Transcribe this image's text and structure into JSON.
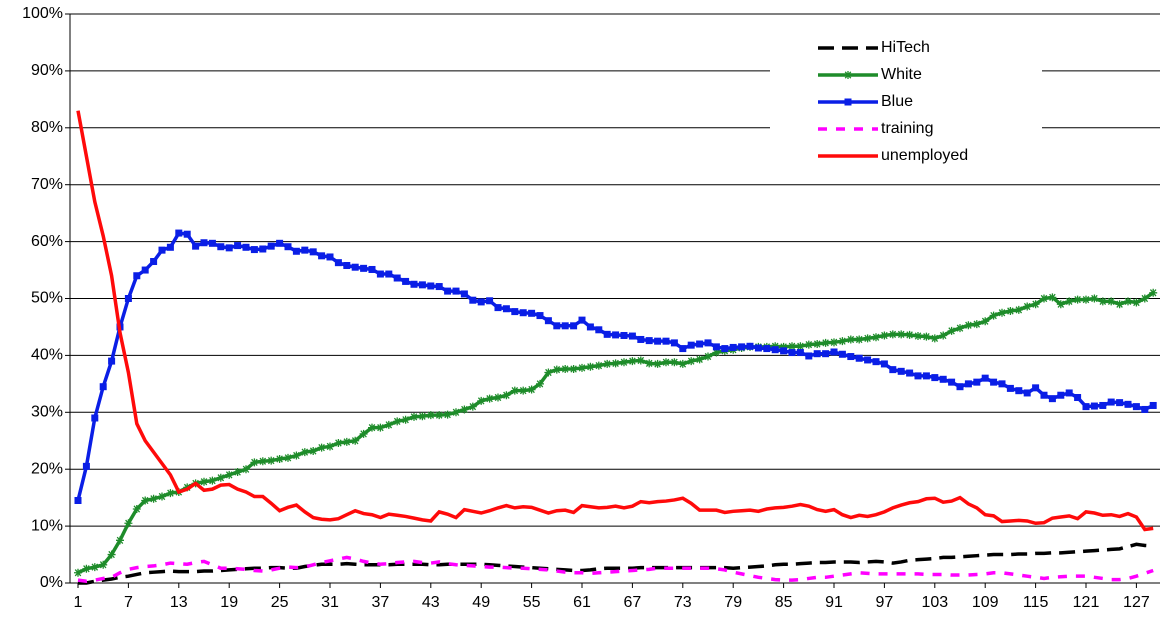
{
  "chart_data": {
    "type": "line",
    "categories": [
      "1",
      null,
      null,
      null,
      null,
      null,
      "7",
      null,
      null,
      null,
      null,
      null,
      "13",
      null,
      null,
      null,
      null,
      null,
      "19",
      null,
      null,
      null,
      null,
      null,
      "25",
      null,
      null,
      null,
      null,
      null,
      "31",
      null,
      null,
      null,
      null,
      null,
      "37",
      null,
      null,
      null,
      null,
      null,
      "43",
      null,
      null,
      null,
      null,
      null,
      "49",
      null,
      null,
      null,
      null,
      null,
      "55",
      null,
      null,
      null,
      null,
      null,
      "61",
      null,
      null,
      null,
      null,
      null,
      "67",
      null,
      null,
      null,
      null,
      null,
      "73",
      null,
      null,
      null,
      null,
      null,
      "79",
      null,
      null,
      null,
      null,
      null,
      "85",
      null,
      null,
      null,
      null,
      null,
      "91",
      null,
      null,
      null,
      null,
      null,
      "97",
      null,
      null,
      null,
      null,
      null,
      "103",
      null,
      null,
      null,
      null,
      null,
      "109",
      null,
      null,
      null,
      null,
      null,
      "115",
      null,
      null,
      null,
      null,
      null,
      "121",
      null,
      null,
      null,
      null,
      null,
      "127",
      null,
      null
    ],
    "series": [
      {
        "name": "HiTech",
        "color": "#000000",
        "dash": "long",
        "marker": "none",
        "values": [
          0,
          0,
          0.3,
          0.5,
          0.7,
          1,
          1.2,
          1.5,
          1.8,
          1.9,
          2,
          2.1,
          2,
          2,
          2,
          2.1,
          2.1,
          2.2,
          2.3,
          2.4,
          2.5,
          2.6,
          2.6,
          2.7,
          2.7,
          2.6,
          2.6,
          2.9,
          3.1,
          3.3,
          3.3,
          3.3,
          3.4,
          3.3,
          3.2,
          3.2,
          3.2,
          3.2,
          3.3,
          3.3,
          3.3,
          3.3,
          3.2,
          3.2,
          3.3,
          3.3,
          3.3,
          3.3,
          3.3,
          3.2,
          3.1,
          3,
          2.9,
          2.8,
          2.7,
          2.6,
          2.5,
          2.4,
          2.3,
          2.2,
          2.2,
          2.3,
          2.5,
          2.6,
          2.6,
          2.6,
          2.6,
          2.7,
          2.7,
          2.7,
          2.7,
          2.7,
          2.7,
          2.7,
          2.7,
          2.7,
          2.7,
          2.7,
          2.6,
          2.7,
          2.8,
          2.9,
          3,
          3.2,
          3.3,
          3.3,
          3.4,
          3.5,
          3.6,
          3.6,
          3.7,
          3.7,
          3.7,
          3.6,
          3.7,
          3.8,
          3.7,
          3.5,
          3.7,
          4,
          4.1,
          4.2,
          4.3,
          4.5,
          4.5,
          4.6,
          4.7,
          4.8,
          4.9,
          5,
          5,
          5,
          5.1,
          5.1,
          5.2,
          5.2,
          5.3,
          5.3,
          5.4,
          5.5,
          5.6,
          5.7,
          5.8,
          5.9,
          6,
          6.4,
          6.8,
          6.6,
          6.5
        ]
      },
      {
        "name": "White",
        "color": "#1e8c2a",
        "dash": "solid",
        "marker": "asterisk",
        "values": [
          1.8,
          2.5,
          2.8,
          3.2,
          5,
          7.5,
          10.5,
          13,
          14.5,
          14.8,
          15.2,
          15.8,
          16,
          16.8,
          17.5,
          17.8,
          18,
          18.5,
          19,
          19.5,
          20,
          21.2,
          21.4,
          21.5,
          21.8,
          22,
          22.4,
          23,
          23.2,
          23.8,
          24,
          24.6,
          24.8,
          25,
          26.2,
          27.3,
          27.3,
          27.8,
          28.4,
          28.7,
          29.2,
          29.3,
          29.5,
          29.5,
          29.6,
          30,
          30.5,
          31,
          32,
          32.4,
          32.6,
          33,
          33.8,
          33.8,
          34,
          35,
          37,
          37.5,
          37.6,
          37.6,
          37.8,
          38,
          38.2,
          38.5,
          38.6,
          38.8,
          39,
          39.1,
          38.6,
          38.5,
          38.8,
          38.8,
          38.5,
          39,
          39.3,
          39.8,
          40.5,
          40.8,
          41,
          41.3,
          41.5,
          41.5,
          41.5,
          41.6,
          41.5,
          41.6,
          41.6,
          41.9,
          42,
          42.2,
          42.3,
          42.5,
          42.8,
          42.8,
          43,
          43.2,
          43.5,
          43.7,
          43.7,
          43.6,
          43.4,
          43.3,
          43,
          43.5,
          44.3,
          44.8,
          45.3,
          45.5,
          46,
          47,
          47.5,
          47.8,
          48,
          48.6,
          49,
          50,
          50.2,
          49,
          49.5,
          49.8,
          49.8,
          50,
          49.5,
          49.5,
          49,
          49.5,
          49.3,
          50,
          51
        ]
      },
      {
        "name": "Blue",
        "color": "#0a1ee6",
        "dash": "solid",
        "marker": "square",
        "values": [
          14.5,
          20.5,
          29,
          34.5,
          39,
          45,
          50,
          54,
          55,
          56.5,
          58.5,
          59,
          61.5,
          61.3,
          59.2,
          59.8,
          59.7,
          59.1,
          58.9,
          59.3,
          59,
          58.6,
          58.7,
          59.2,
          59.7,
          59.1,
          58.3,
          58.5,
          58.2,
          57.5,
          57.3,
          56.3,
          55.8,
          55.5,
          55.3,
          55.1,
          54.3,
          54.3,
          53.6,
          53,
          52.5,
          52.4,
          52.2,
          52.1,
          51.3,
          51.3,
          50.8,
          49.7,
          49.4,
          49.6,
          48.4,
          48.2,
          47.7,
          47.5,
          47.4,
          47,
          46.1,
          45.2,
          45.2,
          45.2,
          46.2,
          45,
          44.5,
          43.7,
          43.6,
          43.5,
          43.4,
          42.8,
          42.6,
          42.5,
          42.5,
          42.2,
          41.2,
          41.8,
          42,
          42.2,
          41.5,
          41.2,
          41.4,
          41.5,
          41.6,
          41.3,
          41.2,
          41,
          40.8,
          40.5,
          40.5,
          39.9,
          40.3,
          40.3,
          40.6,
          40.2,
          39.8,
          39.5,
          39.2,
          38.9,
          38.5,
          37.5,
          37.2,
          36.9,
          36.4,
          36.4,
          36.1,
          35.8,
          35.3,
          34.5,
          35,
          35.3,
          36,
          35.3,
          35,
          34.2,
          33.8,
          33.4,
          34.3,
          33,
          32.4,
          33,
          33.4,
          32.6,
          31,
          31.1,
          31.2,
          31.8,
          31.7,
          31.4,
          31,
          30.5,
          31.2
        ]
      },
      {
        "name": "training",
        "color": "#ff00ff",
        "dash": "short",
        "marker": "none",
        "values": [
          0.5,
          0.3,
          0.5,
          0.8,
          1,
          1.8,
          2.4,
          2.7,
          2.9,
          3,
          3.2,
          3.5,
          3.4,
          3.3,
          3.6,
          3.8,
          3.2,
          2.6,
          2.6,
          2.5,
          2.4,
          2.2,
          2.1,
          2.3,
          2.6,
          2.8,
          2.7,
          2.8,
          3.2,
          3.6,
          3.9,
          4.2,
          4.5,
          4.2,
          3.8,
          3.5,
          3.3,
          3.4,
          3.6,
          3.7,
          3.8,
          3.6,
          3.5,
          3.7,
          3.4,
          3.2,
          3.1,
          3,
          2.9,
          2.8,
          2.8,
          2.7,
          2.6,
          2.6,
          2.5,
          2.4,
          2.3,
          2.1,
          1.9,
          1.8,
          1.8,
          1.7,
          1.8,
          1.9,
          2,
          2.1,
          2.2,
          2.3,
          2.4,
          2.6,
          2.6,
          2.6,
          2.6,
          2.6,
          2.6,
          2.6,
          2.5,
          2.3,
          1.9,
          1.6,
          1.3,
          1,
          0.8,
          0.6,
          0.5,
          0.5,
          0.6,
          0.8,
          1,
          1,
          1.2,
          1.4,
          1.6,
          1.8,
          1.7,
          1.6,
          1.6,
          1.6,
          1.6,
          1.6,
          1.6,
          1.5,
          1.5,
          1.5,
          1.4,
          1.4,
          1.4,
          1.5,
          1.6,
          1.8,
          1.8,
          1.6,
          1.4,
          1.2,
          1,
          0.8,
          1,
          1.1,
          1.2,
          1.2,
          1.2,
          1,
          0.8,
          0.6,
          0.6,
          0.8,
          1.2,
          1.7,
          2.2
        ]
      },
      {
        "name": "unemployed",
        "color": "#ff0a0a",
        "dash": "solid",
        "marker": "none",
        "values": [
          83,
          75,
          67,
          61,
          54,
          44,
          37,
          28,
          25,
          23,
          21,
          19,
          16,
          16.5,
          17.5,
          16.3,
          16.5,
          17.2,
          17.3,
          16.5,
          16,
          15.2,
          15.2,
          14,
          12.7,
          13.3,
          13.7,
          12.5,
          11.5,
          11.2,
          11.1,
          11.3,
          12,
          12.7,
          12.2,
          12,
          11.5,
          12.1,
          11.9,
          11.7,
          11.4,
          11.1,
          10.9,
          12.5,
          12.1,
          11.5,
          12.9,
          12.6,
          12.3,
          12.7,
          13.2,
          13.6,
          13.2,
          13.4,
          13.3,
          12.8,
          12.3,
          12.7,
          12.8,
          12.4,
          13.6,
          13.4,
          13.2,
          13.3,
          13.5,
          13.2,
          13.5,
          14.3,
          14.1,
          14.3,
          14.4,
          14.6,
          14.9,
          14,
          12.8,
          12.8,
          12.8,
          12.4,
          12.6,
          12.7,
          12.8,
          12.6,
          13,
          13.2,
          13.3,
          13.5,
          13.8,
          13.5,
          12.9,
          12.6,
          12.9,
          12,
          11.5,
          11.9,
          11.7,
          12,
          12.5,
          13.2,
          13.7,
          14.1,
          14.3,
          14.8,
          14.9,
          14.2,
          14.4,
          15,
          13.9,
          13.2,
          12,
          11.8,
          10.8,
          10.9,
          11,
          10.9,
          10.5,
          10.6,
          11.4,
          11.6,
          11.8,
          11.3,
          12.5,
          12.3,
          11.9,
          12,
          11.7,
          12.2,
          11.6,
          9.4,
          9.6
        ]
      }
    ],
    "ylim": [
      0,
      100
    ],
    "yticks": [
      {
        "value": 0,
        "label": "0%"
      },
      {
        "value": 10,
        "label": "10%"
      },
      {
        "value": 20,
        "label": "20%"
      },
      {
        "value": 30,
        "label": "30%"
      },
      {
        "value": 40,
        "label": "40%"
      },
      {
        "value": 50,
        "label": "50%"
      },
      {
        "value": 60,
        "label": "60%"
      },
      {
        "value": 70,
        "label": "70%"
      },
      {
        "value": 80,
        "label": "80%"
      },
      {
        "value": 90,
        "label": "90%"
      },
      {
        "value": 100,
        "label": "100%"
      }
    ],
    "grid": true,
    "legend": "upper right"
  }
}
